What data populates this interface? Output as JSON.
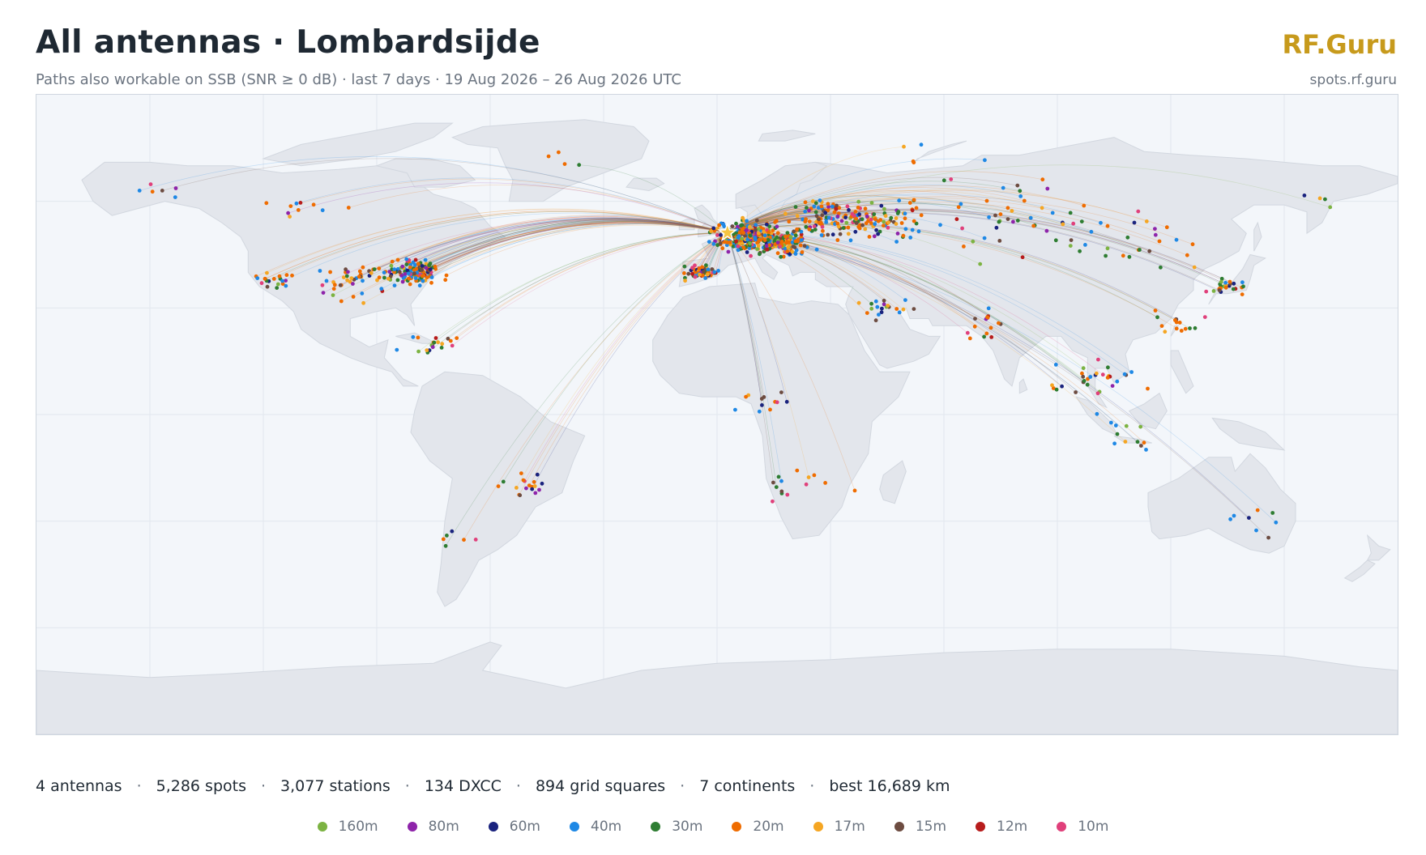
{
  "header": {
    "title": "All antennas · Lombardsijde",
    "subtitle": "Paths also workable on SSB (SNR ≥ 0 dB) · last 7 days · 19 Aug 2026 – 26 Aug 2026 UTC",
    "brand": "RF.Guru",
    "site": "spots.rf.guru"
  },
  "map": {
    "home_station": "Lombardsijde",
    "home_lon": 2.75,
    "home_lat": 51.15
  },
  "stats": [
    "4 antennas",
    "5,286 spots",
    "3,077 stations",
    "134 DXCC",
    "894 grid squares",
    "7 continents",
    "best 16,689 km"
  ],
  "legend": [
    {
      "band": "160m",
      "color": "#7cb342"
    },
    {
      "band": "80m",
      "color": "#8e24aa"
    },
    {
      "band": "60m",
      "color": "#1a237e"
    },
    {
      "band": "40m",
      "color": "#1e88e5"
    },
    {
      "band": "30m",
      "color": "#2e7d32"
    },
    {
      "band": "20m",
      "color": "#ef6c00"
    },
    {
      "band": "17m",
      "color": "#f5a623"
    },
    {
      "band": "15m",
      "color": "#6d4c41"
    },
    {
      "band": "12m",
      "color": "#b71c1c"
    },
    {
      "band": "10m",
      "color": "#e0407b"
    }
  ]
}
